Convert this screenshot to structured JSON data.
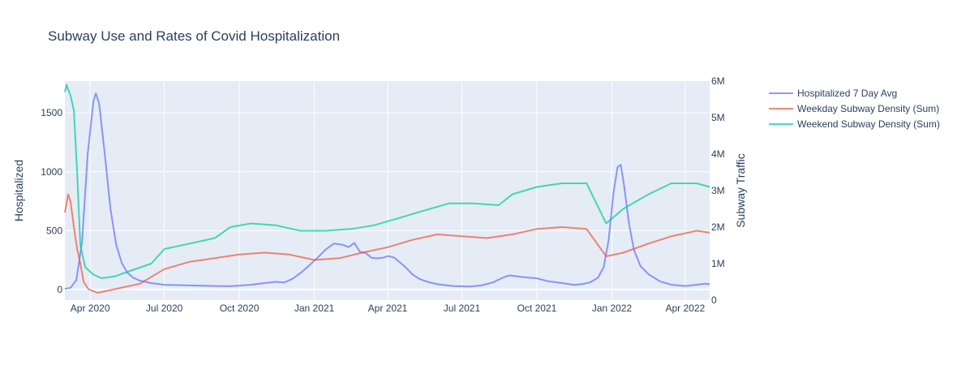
{
  "chart_data": {
    "type": "line",
    "title": "Subway Use and Rates of Covid Hospitalization",
    "xlabel": "",
    "ylabel": "Hospitalized",
    "y2label": "Subway Traffic",
    "xlim": [
      "2020-03-01",
      "2022-05-01"
    ],
    "ylim": [
      -90,
      1770
    ],
    "y2lim": [
      0,
      6000000
    ],
    "x_ticks": [
      {
        "date": "2020-04-01",
        "label": "Apr 2020"
      },
      {
        "date": "2020-07-01",
        "label": "Jul 2020"
      },
      {
        "date": "2020-10-01",
        "label": "Oct 2020"
      },
      {
        "date": "2021-01-01",
        "label": "Jan 2021"
      },
      {
        "date": "2021-04-01",
        "label": "Apr 2021"
      },
      {
        "date": "2021-07-01",
        "label": "Jul 2021"
      },
      {
        "date": "2021-10-01",
        "label": "Oct 2021"
      },
      {
        "date": "2022-01-01",
        "label": "Jan 2022"
      },
      {
        "date": "2022-04-01",
        "label": "Apr 2022"
      }
    ],
    "y_ticks": [
      {
        "value": 0,
        "label": "0"
      },
      {
        "value": 500,
        "label": "500"
      },
      {
        "value": 1000,
        "label": "1000"
      },
      {
        "value": 1500,
        "label": "1500"
      }
    ],
    "y2_ticks": [
      {
        "value": 0,
        "label": "0"
      },
      {
        "value": 1000000,
        "label": "1M"
      },
      {
        "value": 2000000,
        "label": "2M"
      },
      {
        "value": 3000000,
        "label": "3M"
      },
      {
        "value": 4000000,
        "label": "4M"
      },
      {
        "value": 5000000,
        "label": "5M"
      },
      {
        "value": 6000000,
        "label": "6M"
      }
    ],
    "legend_position": "right",
    "grid": true,
    "series": [
      {
        "name": "Hospitalized 7 Day Avg",
        "axis": "y",
        "color": "#636efa",
        "points": [
          [
            "2020-03-01",
            5
          ],
          [
            "2020-03-08",
            15
          ],
          [
            "2020-03-15",
            80
          ],
          [
            "2020-03-22",
            400
          ],
          [
            "2020-03-29",
            1150
          ],
          [
            "2020-04-05",
            1600
          ],
          [
            "2020-04-08",
            1665
          ],
          [
            "2020-04-12",
            1580
          ],
          [
            "2020-04-19",
            1150
          ],
          [
            "2020-04-26",
            680
          ],
          [
            "2020-05-03",
            380
          ],
          [
            "2020-05-10",
            220
          ],
          [
            "2020-05-17",
            140
          ],
          [
            "2020-05-24",
            100
          ],
          [
            "2020-06-01",
            75
          ],
          [
            "2020-06-15",
            55
          ],
          [
            "2020-07-01",
            40
          ],
          [
            "2020-08-01",
            35
          ],
          [
            "2020-09-01",
            30
          ],
          [
            "2020-09-20",
            28
          ],
          [
            "2020-10-15",
            40
          ],
          [
            "2020-11-01",
            55
          ],
          [
            "2020-11-15",
            65
          ],
          [
            "2020-11-25",
            60
          ],
          [
            "2020-12-05",
            90
          ],
          [
            "2020-12-15",
            140
          ],
          [
            "2020-12-25",
            200
          ],
          [
            "2021-01-05",
            270
          ],
          [
            "2021-01-15",
            340
          ],
          [
            "2021-01-25",
            390
          ],
          [
            "2021-02-05",
            380
          ],
          [
            "2021-02-12",
            360
          ],
          [
            "2021-02-19",
            395
          ],
          [
            "2021-02-26",
            320
          ],
          [
            "2021-03-05",
            310
          ],
          [
            "2021-03-12",
            270
          ],
          [
            "2021-03-19",
            265
          ],
          [
            "2021-03-26",
            270
          ],
          [
            "2021-04-02",
            285
          ],
          [
            "2021-04-09",
            270
          ],
          [
            "2021-04-16",
            230
          ],
          [
            "2021-04-23",
            190
          ],
          [
            "2021-05-01",
            130
          ],
          [
            "2021-05-10",
            90
          ],
          [
            "2021-05-20",
            65
          ],
          [
            "2021-06-01",
            45
          ],
          [
            "2021-06-20",
            30
          ],
          [
            "2021-07-10",
            25
          ],
          [
            "2021-07-25",
            35
          ],
          [
            "2021-08-08",
            60
          ],
          [
            "2021-08-20",
            100
          ],
          [
            "2021-08-28",
            120
          ],
          [
            "2021-09-15",
            105
          ],
          [
            "2021-10-01",
            95
          ],
          [
            "2021-10-15",
            70
          ],
          [
            "2021-11-01",
            55
          ],
          [
            "2021-11-15",
            40
          ],
          [
            "2021-11-25",
            45
          ],
          [
            "2021-12-05",
            60
          ],
          [
            "2021-12-15",
            100
          ],
          [
            "2021-12-22",
            190
          ],
          [
            "2021-12-28",
            420
          ],
          [
            "2022-01-03",
            820
          ],
          [
            "2022-01-08",
            1040
          ],
          [
            "2022-01-12",
            1060
          ],
          [
            "2022-01-16",
            880
          ],
          [
            "2022-01-22",
            560
          ],
          [
            "2022-01-28",
            340
          ],
          [
            "2022-02-05",
            200
          ],
          [
            "2022-02-15",
            130
          ],
          [
            "2022-03-01",
            70
          ],
          [
            "2022-03-15",
            40
          ],
          [
            "2022-04-01",
            30
          ],
          [
            "2022-04-15",
            40
          ],
          [
            "2022-04-25",
            50
          ],
          [
            "2022-05-01",
            45
          ]
        ]
      },
      {
        "name": "Weekday Subway Density (Sum)",
        "axis": "y2",
        "color": "#ef553b",
        "points": [
          [
            "2020-03-01",
            2400000
          ],
          [
            "2020-03-05",
            2900000
          ],
          [
            "2020-03-08",
            2700000
          ],
          [
            "2020-03-12",
            2000000
          ],
          [
            "2020-03-16",
            1400000
          ],
          [
            "2020-03-20",
            1000000
          ],
          [
            "2020-03-24",
            500000
          ],
          [
            "2020-03-30",
            300000
          ],
          [
            "2020-04-10",
            200000
          ],
          [
            "2020-05-01",
            300000
          ],
          [
            "2020-06-01",
            450000
          ],
          [
            "2020-07-01",
            850000
          ],
          [
            "2020-08-01",
            1050000
          ],
          [
            "2020-09-01",
            1150000
          ],
          [
            "2020-10-01",
            1250000
          ],
          [
            "2020-11-01",
            1300000
          ],
          [
            "2020-12-01",
            1250000
          ],
          [
            "2021-01-01",
            1100000
          ],
          [
            "2021-02-01",
            1150000
          ],
          [
            "2021-03-01",
            1300000
          ],
          [
            "2021-04-01",
            1450000
          ],
          [
            "2021-05-01",
            1650000
          ],
          [
            "2021-06-01",
            1800000
          ],
          [
            "2021-07-01",
            1750000
          ],
          [
            "2021-08-01",
            1700000
          ],
          [
            "2021-09-01",
            1800000
          ],
          [
            "2021-10-01",
            1950000
          ],
          [
            "2021-11-01",
            2000000
          ],
          [
            "2021-12-01",
            1950000
          ],
          [
            "2021-12-25",
            1200000
          ],
          [
            "2022-01-15",
            1300000
          ],
          [
            "2022-02-15",
            1550000
          ],
          [
            "2022-03-15",
            1750000
          ],
          [
            "2022-04-15",
            1900000
          ],
          [
            "2022-05-01",
            1850000
          ]
        ]
      },
      {
        "name": "Weekend Subway Density (Sum)",
        "axis": "y2",
        "color": "#00cc96",
        "points": [
          [
            "2020-03-01",
            5700000
          ],
          [
            "2020-03-03",
            5900000
          ],
          [
            "2020-03-08",
            5600000
          ],
          [
            "2020-03-12",
            5200000
          ],
          [
            "2020-03-16",
            3500000
          ],
          [
            "2020-03-20",
            1500000
          ],
          [
            "2020-03-26",
            900000
          ],
          [
            "2020-04-05",
            700000
          ],
          [
            "2020-04-15",
            600000
          ],
          [
            "2020-05-01",
            650000
          ],
          [
            "2020-05-20",
            800000
          ],
          [
            "2020-06-15",
            1000000
          ],
          [
            "2020-07-01",
            1400000
          ],
          [
            "2020-08-01",
            1550000
          ],
          [
            "2020-09-01",
            1700000
          ],
          [
            "2020-09-20",
            2000000
          ],
          [
            "2020-10-15",
            2100000
          ],
          [
            "2020-11-15",
            2050000
          ],
          [
            "2020-12-15",
            1900000
          ],
          [
            "2021-01-15",
            1900000
          ],
          [
            "2021-02-15",
            1950000
          ],
          [
            "2021-03-15",
            2050000
          ],
          [
            "2021-04-15",
            2250000
          ],
          [
            "2021-05-15",
            2450000
          ],
          [
            "2021-06-15",
            2650000
          ],
          [
            "2021-07-15",
            2650000
          ],
          [
            "2021-08-15",
            2600000
          ],
          [
            "2021-09-01",
            2900000
          ],
          [
            "2021-10-01",
            3100000
          ],
          [
            "2021-11-01",
            3200000
          ],
          [
            "2021-12-01",
            3200000
          ],
          [
            "2021-12-25",
            2100000
          ],
          [
            "2022-01-15",
            2500000
          ],
          [
            "2022-02-15",
            2900000
          ],
          [
            "2022-03-15",
            3200000
          ],
          [
            "2022-04-15",
            3200000
          ],
          [
            "2022-05-01",
            3100000
          ]
        ]
      }
    ]
  }
}
